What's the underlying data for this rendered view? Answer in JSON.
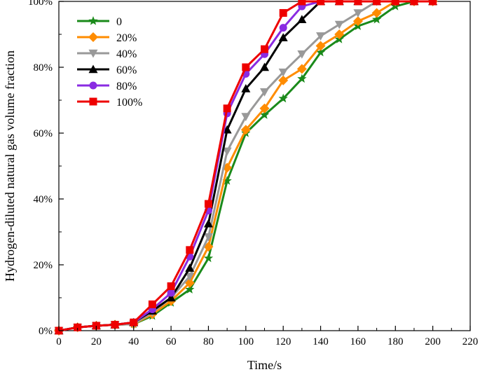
{
  "chart_data": {
    "type": "line",
    "title": "",
    "xlabel": "Time/s",
    "ylabel": "Hydrogen-diluted natural gas volume fraction",
    "xlim": [
      0,
      220
    ],
    "ylim": [
      0,
      100
    ],
    "x_ticks": [
      0,
      20,
      40,
      60,
      80,
      100,
      120,
      140,
      160,
      180,
      200,
      220
    ],
    "y_ticks": [
      0,
      20,
      40,
      60,
      80,
      100
    ],
    "x_tick_labels": [
      "0",
      "20",
      "40",
      "60",
      "80",
      "100",
      "120",
      "140",
      "160",
      "180",
      "200",
      "220"
    ],
    "y_tick_labels": [
      "0%",
      "20%",
      "40%",
      "60%",
      "80%",
      "100%"
    ],
    "grid": false,
    "legend_position": "top-left",
    "x": [
      0,
      10,
      20,
      30,
      40,
      50,
      60,
      70,
      80,
      90,
      100,
      110,
      120,
      130,
      140,
      150,
      160,
      170,
      180,
      190,
      200
    ],
    "series": [
      {
        "name": "0",
        "color": "#1a8a1a",
        "marker": "star",
        "values": [
          0,
          1,
          1.5,
          1.8,
          2,
          4.5,
          8.5,
          12.5,
          22,
          45.5,
          60,
          65.5,
          70.5,
          76.5,
          84.5,
          88.5,
          92.5,
          94.5,
          98.5,
          100,
          100
        ]
      },
      {
        "name": "20%",
        "color": "#ff8c00",
        "marker": "diamond",
        "values": [
          0,
          1,
          1.5,
          1.8,
          2,
          5,
          9,
          14.5,
          25.5,
          49.5,
          61,
          67.5,
          76,
          79.5,
          86.5,
          90,
          94,
          96.5,
          100,
          100,
          100
        ]
      },
      {
        "name": "40%",
        "color": "#999999",
        "marker": "triangle-down",
        "values": [
          0,
          1,
          1.5,
          1.8,
          2,
          5.5,
          10,
          16.5,
          28.5,
          54.5,
          65,
          72.5,
          78.5,
          84,
          89.5,
          93,
          96.5,
          100,
          100,
          100,
          100
        ]
      },
      {
        "name": "60%",
        "color": "#000000",
        "marker": "triangle-up",
        "values": [
          0,
          1,
          1.5,
          1.8,
          2.5,
          6,
          10,
          19,
          32.5,
          61,
          73.5,
          80,
          89,
          94.5,
          100,
          100,
          100,
          100,
          100,
          100,
          100
        ]
      },
      {
        "name": "80%",
        "color": "#8a2be2",
        "marker": "circle",
        "values": [
          0,
          1,
          1.5,
          1.8,
          2.5,
          6.5,
          11.5,
          22.5,
          36.5,
          66,
          78,
          84,
          92,
          98.5,
          100,
          100,
          100,
          100,
          100,
          100,
          100
        ]
      },
      {
        "name": "100%",
        "color": "#ee0000",
        "marker": "square",
        "values": [
          0,
          1,
          1.5,
          1.8,
          2.5,
          8,
          13.5,
          24.5,
          38.5,
          67.5,
          80,
          85.5,
          96.5,
          100,
          100,
          100,
          100,
          100,
          100,
          100,
          100
        ]
      }
    ]
  }
}
